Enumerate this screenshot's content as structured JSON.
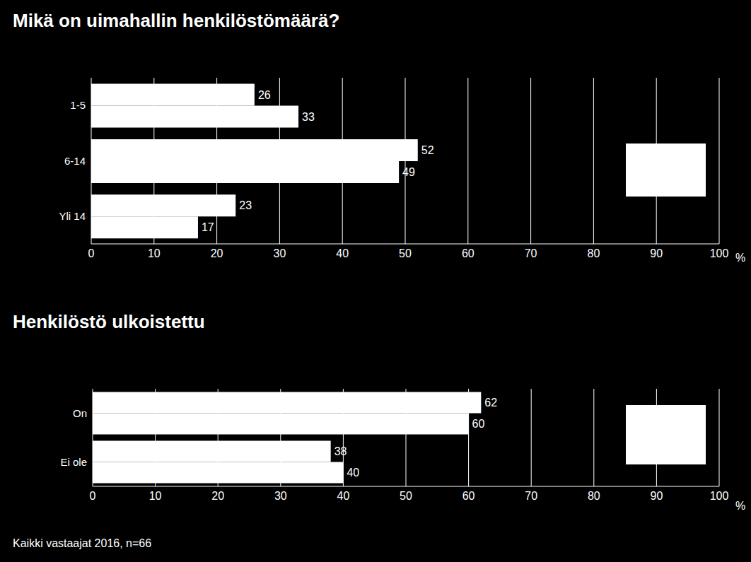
{
  "chart_data": [
    {
      "type": "bar",
      "title": "Mikä on uimahallin henkilöstömäärä?",
      "orientation": "horizontal",
      "categories": [
        "1-5",
        "6-14",
        "Yli 14"
      ],
      "series": [
        {
          "color": "#ffffff",
          "values": [
            26,
            52,
            23
          ]
        },
        {
          "color": "#ffffff",
          "values": [
            33,
            49,
            17
          ]
        }
      ],
      "xlim": [
        0,
        100
      ],
      "xticks": [
        0,
        10,
        20,
        30,
        40,
        50,
        60,
        70,
        80,
        90,
        100
      ],
      "xlabel": "%",
      "grid": true,
      "data_labels": true
    },
    {
      "type": "bar",
      "title": "Henkilöstö ulkoistettu",
      "orientation": "horizontal",
      "categories": [
        "On",
        "Ei ole"
      ],
      "series": [
        {
          "color": "#ffffff",
          "values": [
            62,
            38
          ]
        },
        {
          "color": "#ffffff",
          "values": [
            60,
            40
          ]
        }
      ],
      "xlim": [
        0,
        100
      ],
      "xticks": [
        0,
        10,
        20,
        30,
        40,
        50,
        60,
        70,
        80,
        90,
        100
      ],
      "xlabel": "%",
      "grid": true,
      "data_labels": true,
      "annotations": [
        "Kaikki vastaajat 2016, n=66"
      ]
    }
  ]
}
